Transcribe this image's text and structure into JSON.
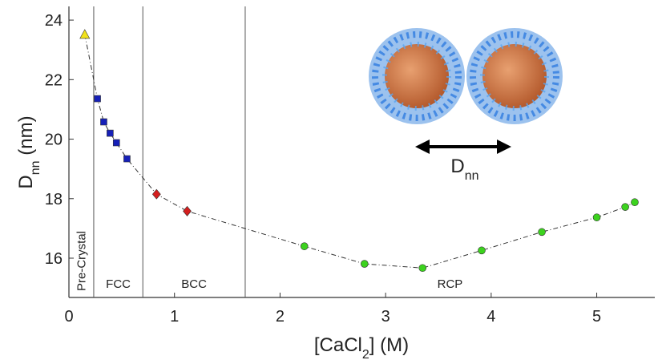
{
  "chart_data": {
    "type": "line",
    "x_label": [
      {
        "text": "[CaCl"
      },
      {
        "text": "2",
        "sub": true
      },
      {
        "text": "] (M)"
      }
    ],
    "y_label": [
      {
        "text": "D"
      },
      {
        "text": "nn",
        "sub": true
      },
      {
        "text": " (nm)"
      }
    ],
    "annotation": [
      {
        "text": "D"
      },
      {
        "text": "nn",
        "sub": true
      }
    ],
    "xlim": [
      0,
      5.55
    ],
    "ylim": [
      14.68,
      24.46
    ],
    "xticks": [
      0,
      1,
      2,
      3,
      4,
      5
    ],
    "yticks": [
      16,
      18,
      20,
      22,
      24
    ],
    "line_color": "#333333",
    "phase_boundaries": [
      0.235,
      0.7,
      1.67
    ],
    "phases": [
      "Pre-Crystal",
      "FCC",
      "BCC",
      "RCP"
    ],
    "series": [
      {
        "marker": "triangle",
        "color": "#f2e21a",
        "x": [
          0.15
        ],
        "values": [
          23.52
        ]
      },
      {
        "marker": "square",
        "color": "#1620b8",
        "x": [
          0.27,
          0.33,
          0.39,
          0.45,
          0.55
        ],
        "values": [
          21.36,
          20.58,
          20.2,
          19.88,
          19.34
        ]
      },
      {
        "marker": "diamond",
        "color": "#d41e1e",
        "x": [
          0.83,
          1.12
        ],
        "values": [
          18.15,
          17.58
        ]
      },
      {
        "marker": "circle",
        "color": "#3cd21e",
        "x": [
          2.23,
          2.8,
          3.35,
          3.91,
          4.48,
          5.0,
          5.27,
          5.36
        ],
        "values": [
          16.4,
          15.81,
          15.67,
          16.26,
          16.88,
          17.37,
          17.72,
          17.88
        ]
      }
    ]
  }
}
